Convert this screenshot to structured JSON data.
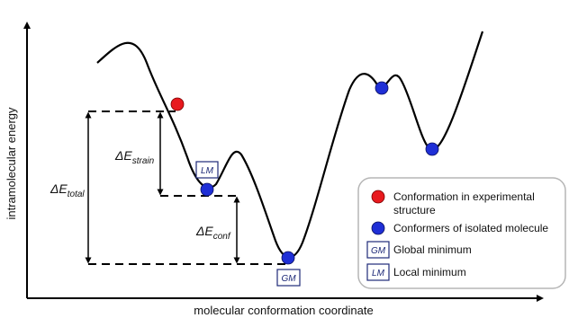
{
  "axes": {
    "y_label": "intramolecular energy",
    "x_label": "molecular conformation coordinate"
  },
  "energy_differences": {
    "strain": {
      "symbol": "ΔE",
      "subscript": "strain"
    },
    "conf": {
      "symbol": "ΔE",
      "subscript": "conf"
    },
    "total": {
      "symbol": "ΔE",
      "subscript": "total"
    }
  },
  "boxed_markers": {
    "local": "LM",
    "global": "GM"
  },
  "legend": {
    "items": [
      {
        "marker": "red-circle",
        "text_line1": "Conformation in experimental",
        "text_line2": "structure"
      },
      {
        "marker": "blue-circle",
        "text_line1": "Conformers of isolated molecule"
      },
      {
        "marker": "box",
        "box_text": "GM",
        "text_line1": "Global minimum"
      },
      {
        "marker": "box",
        "box_text": "LM",
        "text_line1": "Local minimum"
      }
    ]
  },
  "colors": {
    "experimental": "#e8191e",
    "conformer": "#1f2fd6",
    "box_text": "#1e2a78",
    "legend_border": "#b5b5b5"
  }
}
